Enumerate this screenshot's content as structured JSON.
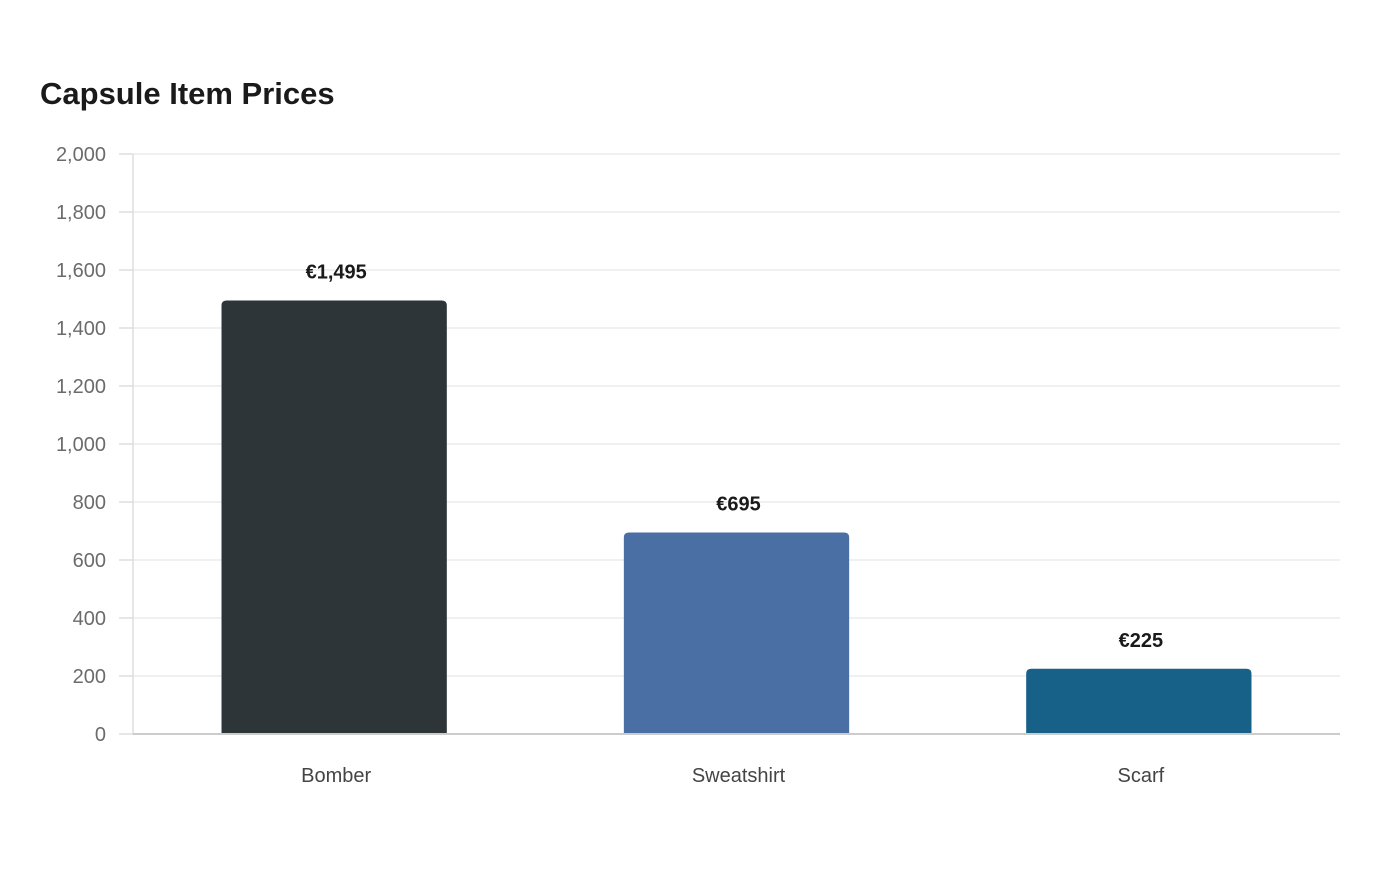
{
  "chart_data": {
    "type": "bar",
    "title": "Capsule Item Prices",
    "xlabel": "",
    "ylabel": "",
    "categories": [
      "Bomber",
      "Sweatshirt",
      "Scarf"
    ],
    "values": [
      1495,
      695,
      225
    ],
    "data_labels": [
      "€1,495",
      "€695",
      "€225"
    ],
    "colors": [
      "#2e3538",
      "#4a6fa5",
      "#176088"
    ],
    "ylim": [
      0,
      2000
    ],
    "yticks": [
      0,
      200,
      400,
      600,
      800,
      1000,
      1200,
      1400,
      1600,
      1800,
      2000
    ],
    "ytick_labels": [
      "0",
      "200",
      "400",
      "600",
      "800",
      "1,000",
      "1,200",
      "1,400",
      "1,600",
      "1,800",
      "2,000"
    ],
    "grid": true,
    "legend": "none"
  }
}
